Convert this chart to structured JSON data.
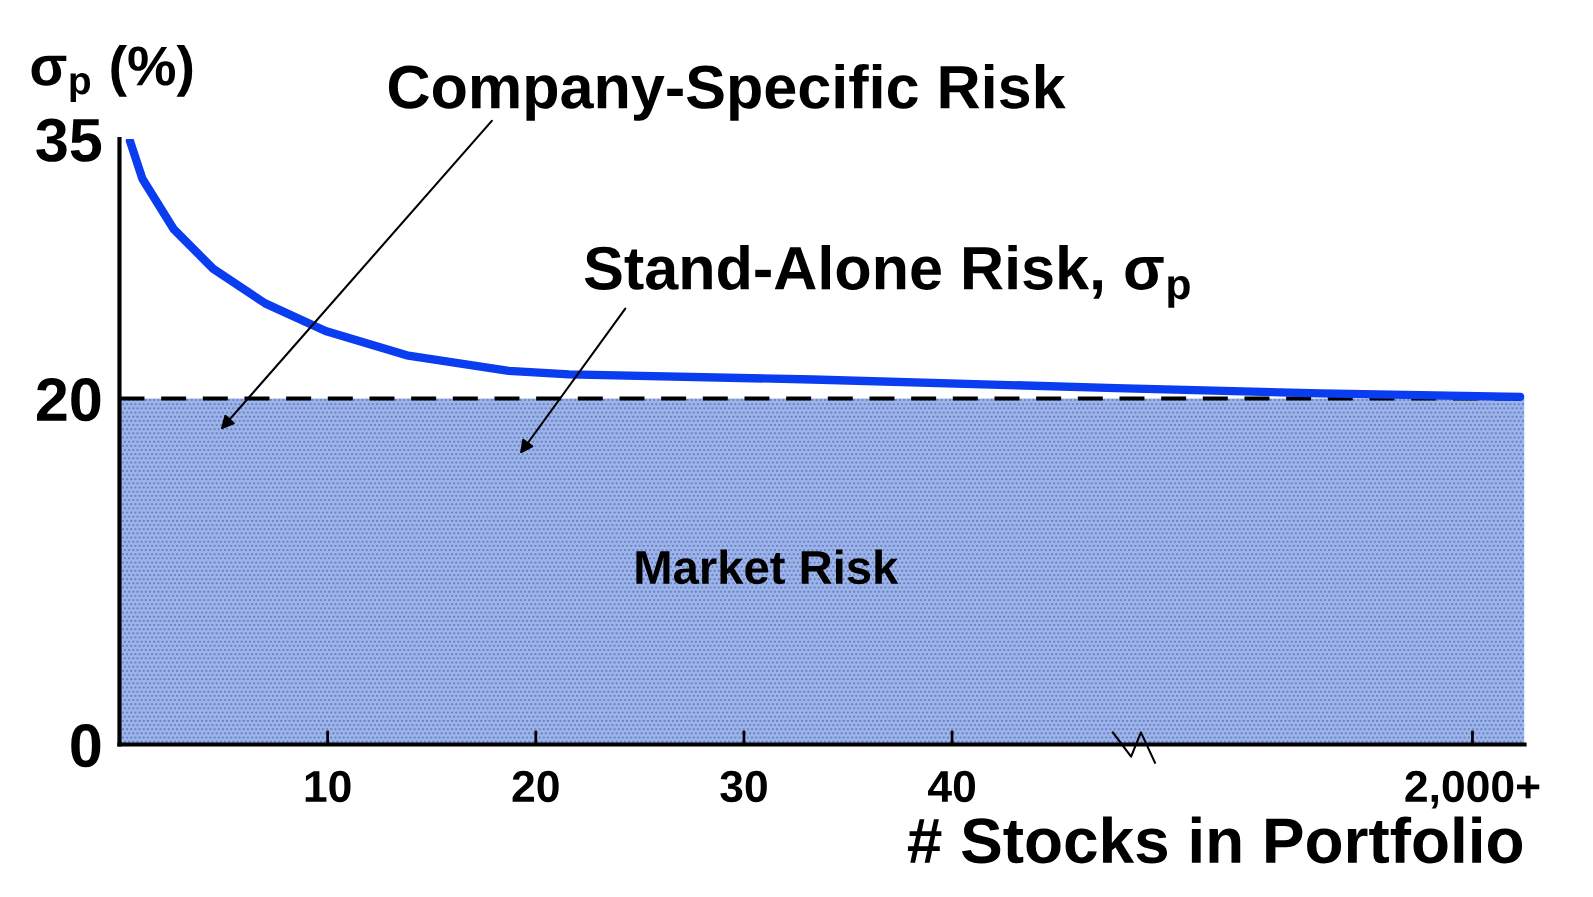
{
  "chart_data": {
    "type": "line",
    "xlabel": "# Stocks in Portfolio",
    "ylabel": "σ$_{p}$ (%)",
    "xlim": [
      0,
      67.5
    ],
    "xticks": [
      10,
      20,
      30,
      40,
      {
        "value": 65,
        "label": "2,000+"
      }
    ],
    "ylim": [
      0,
      35
    ],
    "yticks": [
      0,
      20,
      35
    ],
    "series": [
      {
        "color": "#0a3cf0",
        "x": [
          0.5,
          1.1,
          2.6,
          4.5,
          7.0,
          9.9,
          13.8,
          18.7,
          21.6,
          33.3,
          47.9,
          57.7,
          67.3
        ],
        "values": [
          34.9,
          32.7,
          29.8,
          27.5,
          25.5,
          23.9,
          22.5,
          21.6,
          21.4,
          21.1,
          20.6,
          20.3,
          20.1
        ]
      }
    ],
    "bands": [
      {
        "axis": "y",
        "from": 0,
        "to": 20,
        "label": "Market Risk",
        "color": "#9fb4e6"
      }
    ],
    "ref_lines": [
      {
        "axis": "y",
        "value": 20,
        "line_style": "dashed",
        "color": "#000000"
      }
    ],
    "annotations": [
      "Company-Specific Risk",
      "Stand-Alone Risk, σ$_{p}$"
    ],
    "grid": false,
    "legend": false,
    "marker": "none",
    "line_style": "solid"
  }
}
